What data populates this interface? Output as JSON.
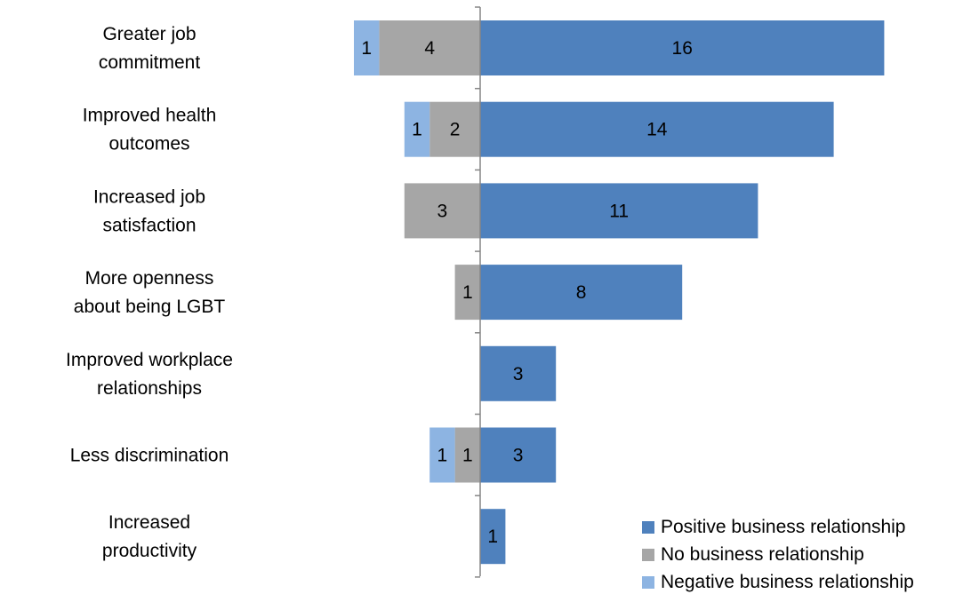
{
  "chart_data": {
    "type": "bar",
    "orientation": "horizontal",
    "stacking": "diverging",
    "categories": [
      [
        "Greater job",
        "commitment"
      ],
      [
        "Improved health",
        "outcomes"
      ],
      [
        "Increased job",
        "satisfaction"
      ],
      [
        "More openness",
        "about being LGBT"
      ],
      [
        "Improved workplace",
        "relationships"
      ],
      [
        "Less discrimination"
      ],
      [
        "Increased",
        "productivity"
      ]
    ],
    "series": [
      {
        "name": "Positive business relationship",
        "direction": "right",
        "color": "#4F81BD",
        "values": [
          16,
          14,
          11,
          8,
          3,
          3,
          1
        ]
      },
      {
        "name": "No business relationship",
        "direction": "left",
        "color": "#A6A6A6",
        "values": [
          4,
          2,
          3,
          1,
          0,
          1,
          0
        ]
      },
      {
        "name": "Negative business relationship",
        "direction": "left",
        "color": "#8DB4E2",
        "values": [
          1,
          1,
          0,
          0,
          0,
          1,
          0
        ]
      }
    ],
    "data_labels": true,
    "legend_position": "bottom-right",
    "axis_color": "#868686"
  }
}
